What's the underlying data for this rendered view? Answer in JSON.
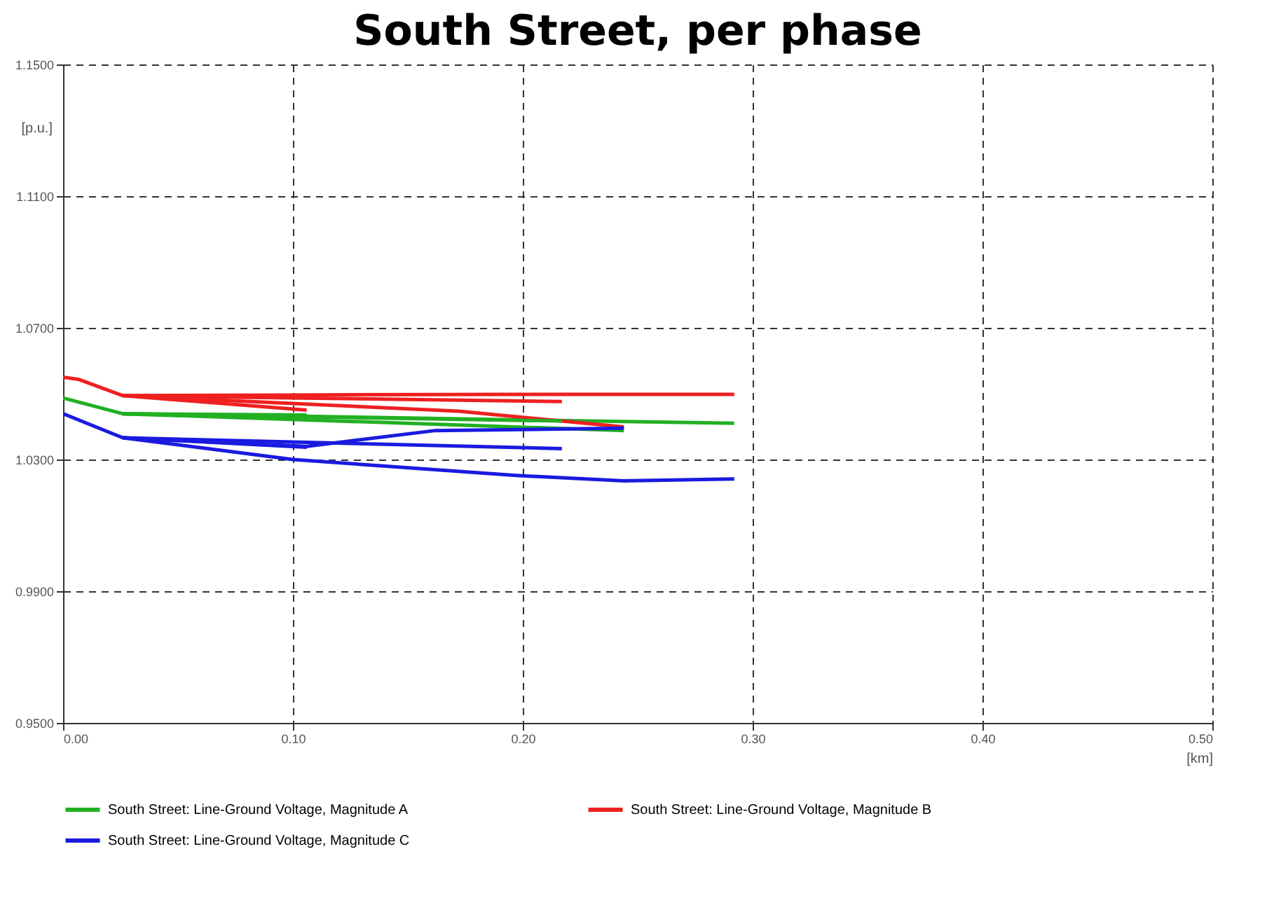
{
  "chart_data": {
    "type": "line",
    "title": "South Street, per phase",
    "xlabel": "[km]",
    "ylabel": "[p.u.]",
    "xlim": [
      0,
      0.5
    ],
    "xticks": [
      {
        "value": 0,
        "label": "0.00"
      },
      {
        "value": 0.1,
        "label": "0.10"
      },
      {
        "value": 0.2,
        "label": "0.20"
      },
      {
        "value": 0.3,
        "label": "0.30"
      },
      {
        "value": 0.4,
        "label": "0.40"
      },
      {
        "value": 0.5,
        "label": "0.50"
      }
    ],
    "ylim": [
      0.95,
      1.15
    ],
    "yticks": [
      {
        "value": 0.95,
        "label": "0.9500"
      },
      {
        "value": 0.99,
        "label": "0.9900"
      },
      {
        "value": 1.03,
        "label": "1.0300"
      },
      {
        "value": 1.07,
        "label": "1.0700"
      },
      {
        "value": 1.11,
        "label": "1.1100"
      },
      {
        "value": 1.15,
        "label": "1.1500"
      }
    ],
    "grid": true,
    "legend": "bottom",
    "line_style": "solid",
    "series": [
      {
        "name": "South Street: Line-Ground Voltage, Magnitude A",
        "color": "#22b022",
        "x": [
          0,
          0.026,
          0.1,
          0.2,
          0.292
        ],
        "values": [
          1.0487,
          1.0439,
          1.0432,
          1.042,
          1.041
        ]
      },
      {
        "name": "South Street: Line-Ground Voltage, Magnitude B",
        "color": "#ee2020",
        "x": [
          0,
          0.007,
          0.026,
          0.1,
          0.2,
          0.292
        ],
        "values": [
          1.055,
          1.0543,
          1.0494,
          1.0496,
          1.0498,
          1.0498
        ]
      },
      {
        "name": "South Street: Line-Ground Voltage, Magnitude C",
        "color": "#1a1ae0",
        "x": [
          0,
          0.026,
          0.1,
          0.196,
          0.244,
          0.292
        ],
        "values": [
          1.0439,
          1.0366,
          1.03,
          1.0252,
          1.0235,
          1.0241
        ]
      },
      {
        "color": "#ee2020",
        "x": [
          0.026,
          0.217
        ],
        "values": [
          1.0494,
          1.0476
        ]
      },
      {
        "color": "#ee2020",
        "x": [
          0.026,
          0.106
        ],
        "values": [
          1.0494,
          1.045
        ]
      },
      {
        "color": "#ee2020",
        "x": [
          0.026,
          0.172,
          0.244
        ],
        "values": [
          1.0494,
          1.0447,
          1.0399
        ]
      },
      {
        "color": "#22b022",
        "x": [
          0.026,
          0.217
        ],
        "values": [
          1.0439,
          1.0417
        ]
      },
      {
        "color": "#22b022",
        "x": [
          0.026,
          0.244
        ],
        "values": [
          1.0439,
          1.0388
        ]
      },
      {
        "color": "#22b022",
        "x": [
          0.026,
          0.106
        ],
        "values": [
          1.0439,
          1.0435
        ]
      },
      {
        "color": "#1a1ae0",
        "x": [
          0.026,
          0.106
        ],
        "values": [
          1.0366,
          1.0337
        ]
      },
      {
        "color": "#1a1ae0",
        "x": [
          0.026,
          0.217
        ],
        "values": [
          1.0366,
          1.0333
        ]
      },
      {
        "color": "#1a1ae0",
        "x": [
          0.026,
          0.106,
          0.162,
          0.244
        ],
        "values": [
          1.0366,
          1.034,
          1.0388,
          1.0395
        ]
      }
    ]
  }
}
